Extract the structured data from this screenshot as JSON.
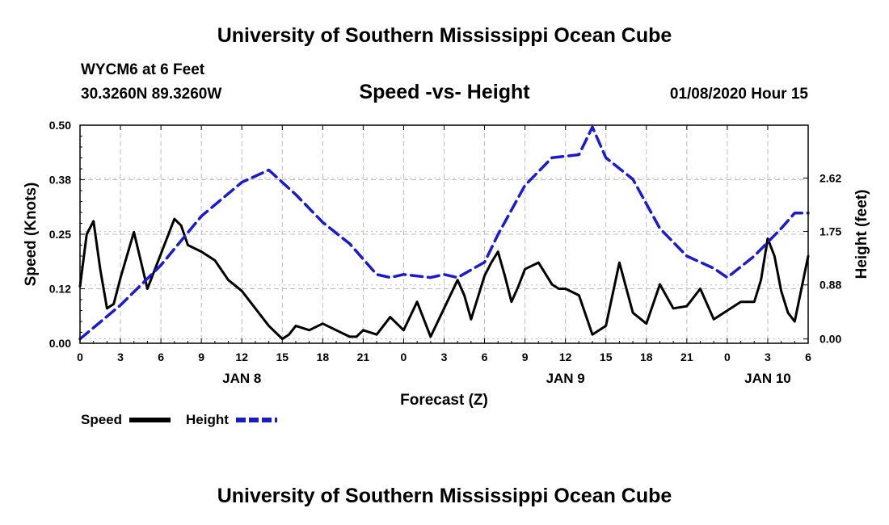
{
  "header": {
    "top_title": "University of Southern Mississippi Ocean Cube",
    "station": "WYCM6 at 6 Feet",
    "coords": "30.3260N 89.3260W",
    "chart_title": "Speed -vs- Height",
    "valid_time": "01/08/2020 Hour 15"
  },
  "footer": {
    "bottom_title": "University of Southern Mississippi Ocean Cube"
  },
  "colors": {
    "speed": "#000000",
    "height": "#1a1ad0",
    "grid": "#bbbbbb"
  },
  "chart_data": {
    "type": "line",
    "title": "Speed -vs- Height",
    "xlabel": "Forecast (Z)",
    "ylabel": "Speed (Knots)",
    "ylabel_right": "Height (feet)",
    "xlim": [
      0,
      54
    ],
    "ylim": [
      0,
      0.5
    ],
    "ylim_right": [
      -0.07,
      3.48
    ],
    "x_ticks": [
      0,
      3,
      6,
      9,
      12,
      15,
      18,
      21,
      24,
      27,
      30,
      33,
      36,
      39,
      42,
      45,
      48,
      51,
      54
    ],
    "x_tick_labels": [
      "0",
      "3",
      "6",
      "9",
      "12",
      "15",
      "18",
      "21",
      "0",
      "3",
      "6",
      "9",
      "12",
      "15",
      "18",
      "21",
      "0",
      "3",
      "6"
    ],
    "day_labels": [
      {
        "x": 12,
        "label": "JAN 8"
      },
      {
        "x": 36,
        "label": "JAN 9"
      },
      {
        "x": 51,
        "label": "JAN 10"
      }
    ],
    "y_ticks": [
      0.0,
      0.125,
      0.25,
      0.375,
      0.5
    ],
    "y_tick_labels": [
      "0.00",
      "0.12",
      "0.25",
      "0.38",
      "0.50"
    ],
    "y_ticks_right": [
      0.0,
      0.88,
      1.75,
      2.62
    ],
    "y_tick_labels_right": [
      "0.00",
      "0.88",
      "1.75",
      "2.62"
    ],
    "grid": true,
    "legend": {
      "position": "bottom-left",
      "entries": [
        "Speed",
        "Height"
      ]
    },
    "series": [
      {
        "name": "Speed",
        "axis": "left",
        "style": "solid",
        "x": [
          0,
          0.5,
          1,
          1.5,
          2,
          2.5,
          3,
          4,
          5,
          6,
          7,
          7.5,
          8,
          9,
          10,
          11,
          12,
          13,
          14,
          15,
          15.5,
          16,
          17,
          18,
          19,
          20,
          20.5,
          21,
          22,
          23,
          24,
          25,
          26,
          27,
          28,
          28.5,
          29,
          30,
          30.5,
          31,
          31.5,
          32,
          32.5,
          33,
          34,
          35,
          35.5,
          36,
          37,
          37.5,
          38,
          39,
          40,
          41,
          42,
          43,
          44,
          45,
          46,
          47,
          48,
          49,
          50,
          50.5,
          51,
          51.5,
          52,
          52.5,
          53,
          54
        ],
        "values": [
          0.13,
          0.25,
          0.28,
          0.17,
          0.08,
          0.09,
          0.15,
          0.255,
          0.125,
          0.205,
          0.285,
          0.27,
          0.225,
          0.21,
          0.19,
          0.145,
          0.12,
          0.08,
          0.04,
          0.01,
          0.02,
          0.04,
          0.03,
          0.045,
          0.03,
          0.015,
          0.015,
          0.03,
          0.02,
          0.06,
          0.03,
          0.095,
          0.015,
          0.08,
          0.145,
          0.11,
          0.055,
          0.155,
          0.185,
          0.21,
          0.155,
          0.095,
          0.13,
          0.17,
          0.185,
          0.135,
          0.125,
          0.125,
          0.11,
          0.065,
          0.02,
          0.04,
          0.185,
          0.07,
          0.045,
          0.135,
          0.08,
          0.085,
          0.125,
          0.055,
          0.075,
          0.095,
          0.095,
          0.145,
          0.24,
          0.2,
          0.12,
          0.07,
          0.05,
          0.2
        ]
      },
      {
        "name": "Height",
        "axis": "right",
        "style": "dashed",
        "x": [
          0,
          3,
          6,
          9,
          12,
          14,
          16,
          18,
          20,
          22,
          23,
          24,
          26,
          27,
          28,
          30,
          31,
          33,
          35,
          37,
          38,
          39,
          41,
          43,
          45,
          47,
          48,
          50,
          52,
          53,
          54
        ],
        "values": [
          0.0,
          0.55,
          1.2,
          2.0,
          2.55,
          2.75,
          2.35,
          1.9,
          1.55,
          1.05,
          1.0,
          1.05,
          1.0,
          1.05,
          1.0,
          1.25,
          1.7,
          2.5,
          2.95,
          3.0,
          3.45,
          2.95,
          2.6,
          1.8,
          1.35,
          1.15,
          1.0,
          1.35,
          1.8,
          2.05,
          2.05
        ]
      }
    ]
  }
}
